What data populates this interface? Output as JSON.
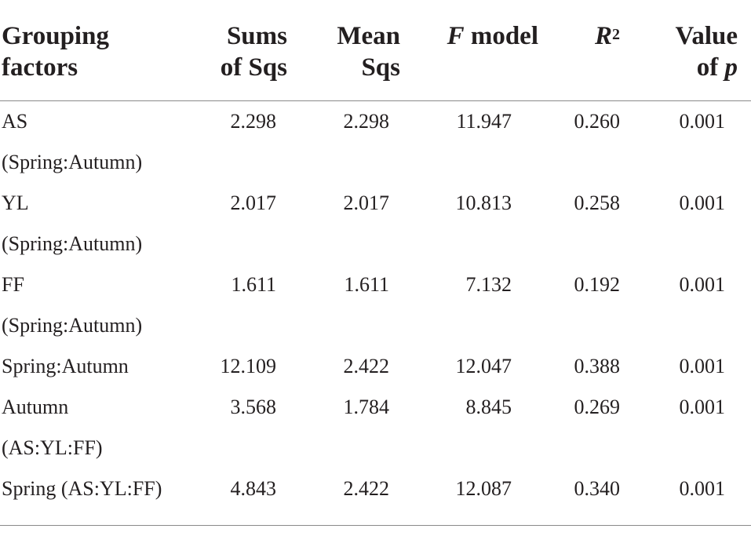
{
  "headers": {
    "grouping": [
      "Grouping",
      "factors"
    ],
    "sums": [
      "Sums",
      "of Sqs"
    ],
    "mean": [
      "Mean",
      "Sqs"
    ],
    "f_italic": "F",
    "f_rest": " model",
    "r_italic": "R",
    "r_sup": "2",
    "value_line1": "Value",
    "value_of": "of ",
    "value_p": "p"
  },
  "rows": [
    {
      "factor": [
        "AS",
        "(Spring:Autumn)"
      ],
      "sums": "2.298",
      "mean": "2.298",
      "f": "11.947",
      "r2": "0.260",
      "p": "0.001"
    },
    {
      "factor": [
        "YL",
        "(Spring:Autumn)"
      ],
      "sums": "2.017",
      "mean": "2.017",
      "f": "10.813",
      "r2": "0.258",
      "p": "0.001"
    },
    {
      "factor": [
        "FF",
        "(Spring:Autumn)"
      ],
      "sums": "1.611",
      "mean": "1.611",
      "f": "7.132",
      "r2": "0.192",
      "p": "0.001"
    },
    {
      "factor": [
        "Spring:Autumn"
      ],
      "sums": "12.109",
      "mean": "2.422",
      "f": "12.047",
      "r2": "0.388",
      "p": "0.001"
    },
    {
      "factor": [
        "Autumn",
        "(AS:YL:FF)"
      ],
      "sums": "3.568",
      "mean": "1.784",
      "f": "8.845",
      "r2": "0.269",
      "p": "0.001"
    },
    {
      "factor": [
        "Spring (AS:YL:FF)"
      ],
      "sums": "4.843",
      "mean": "2.422",
      "f": "12.087",
      "r2": "0.340",
      "p": "0.001"
    }
  ]
}
